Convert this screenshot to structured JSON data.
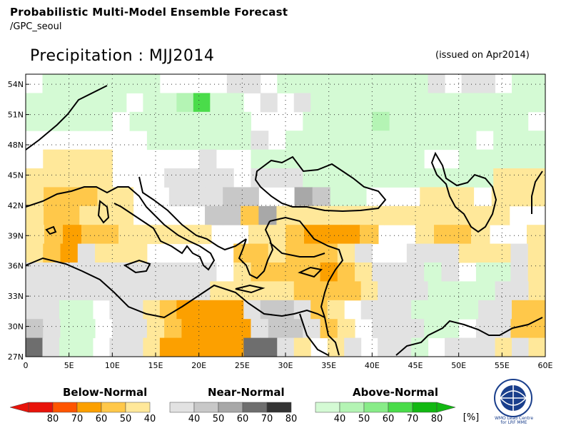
{
  "header": {
    "product": "Probabilistic Multi-Model Ensemble Forecast",
    "source": "/GPC_seoul",
    "title": "Precipitation : MJJ2014",
    "issued": "(issued on Apr2014)"
  },
  "map": {
    "lon_range": [
      0,
      60
    ],
    "lat_range": [
      27,
      55
    ],
    "cell_size_deg": 2.5,
    "grid_lines": "dotted",
    "x_ticks": [
      "0",
      "5E",
      "10E",
      "15E",
      "20E",
      "25E",
      "30E",
      "35E",
      "40E",
      "45E",
      "50E",
      "55E",
      "60E"
    ],
    "y_ticks": [
      "27N",
      "30N",
      "33N",
      "36N",
      "39N",
      "42N",
      "45N",
      "48N",
      "51N",
      "54N"
    ],
    "category_colors": {
      "B80": "#e8130a",
      "B70": "#ff5500",
      "B60": "#fca000",
      "B50": "#ffc84a",
      "B40": "#ffe89a",
      "N40": "#e2e2e2",
      "N50": "#c8c8c8",
      "N60": "#a8a8a8",
      "N70": "#6e6e6e",
      "N80": "#333333",
      "A40": "#d4fad4",
      "A50": "#b4f4b4",
      "A60": "#88ec88",
      "A70": "#4adc4a",
      "A80": "#12b812"
    },
    "cells": {
      "rows_note": "row 0 = northernmost band",
      "grid": [
        "-AAAAAAA----NN-AAAAAAAAAN-NN-AA",
        "AAAAAA-AAB5AA-N-NAAAAAAAAAAAAAA",
        "AAAAA-AAAAAAA---AAAABAAAAAAAA-",
        "-------AAAAAAN-AAAAAAAAAAA-AAA",
        "-QQQQ-----N--AAAAAAAAAA--AAAAA",
        "QQQQQ---NNNN-NNNAAAAAAAAAAAQQQ",
        "QRRRQQ--NNNXX--YXAA---QQQ-QQQ",
        "QRRQQQ----XXRYQQQQQQQQQQQQQ--",
        "QRSRRQQQQQ--QQRSSSR--QRRQ--Q",
        "QRSNQQQ-----RRQRRRQN--NNNQQQNQ",
        "NNNNNNNNNNN-QRRRRSRQNNNAN-AANQ",
        "NNNNNNNNNNNQQQQQRRRRQNNNAAAANNQ",
        "NNAA-NNQRSSSSNXXNRQ-NNNAAAANNRR",
        "XNAA-NNQRSSSSNXXNRQ-NNNAA-NNRR",
        "ZNAA-NNQSSSSSZZNQ-QN-NNA-NNNQNQ"
      ]
    }
  },
  "legend": {
    "below": {
      "title": "Below-Normal",
      "labels": [
        "80",
        "70",
        "60",
        "50",
        "40"
      ],
      "colors": [
        "#e8130a",
        "#ff5500",
        "#fca000",
        "#ffc84a",
        "#ffe89a"
      ]
    },
    "near": {
      "title": "Near-Normal",
      "labels": [
        "40",
        "50",
        "60",
        "70",
        "80"
      ],
      "colors": [
        "#e2e2e2",
        "#c8c8c8",
        "#a8a8a8",
        "#6e6e6e",
        "#333333"
      ]
    },
    "above": {
      "title": "Above-Normal",
      "labels": [
        "40",
        "50",
        "60",
        "70",
        "80"
      ],
      "colors": [
        "#d4fad4",
        "#b4f4b4",
        "#88ec88",
        "#4adc4a",
        "#12b812"
      ]
    },
    "unit": "[%]"
  },
  "logo": {
    "name": "wmo-logo",
    "text": "WMO Lead Centre for LRF MME"
  }
}
